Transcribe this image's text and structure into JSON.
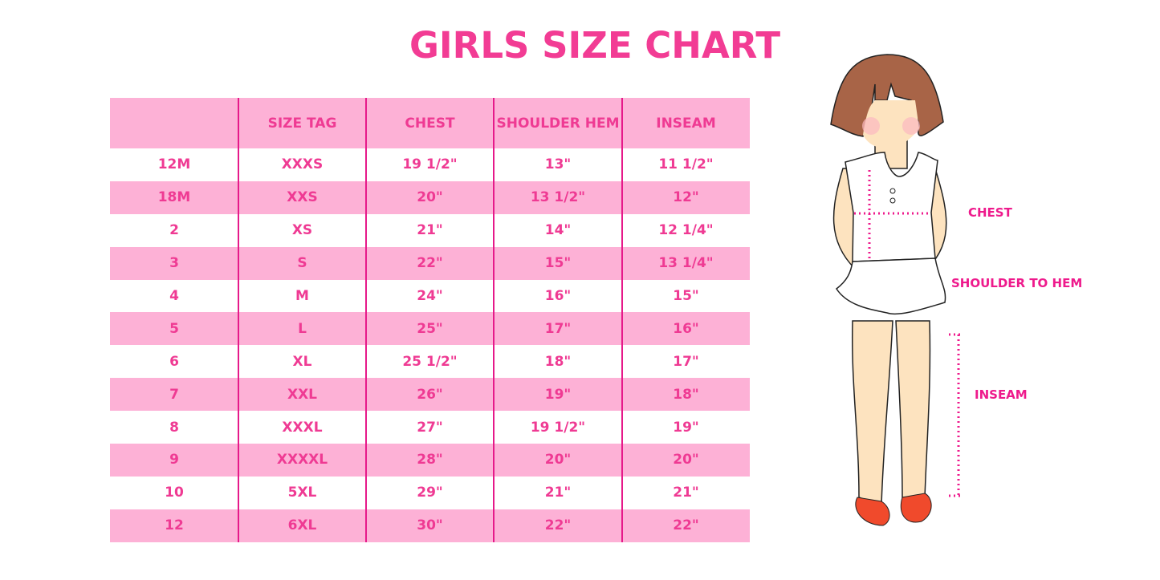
{
  "title": "GIRLS SIZE CHART",
  "table": {
    "headers": [
      "",
      "SIZE TAG",
      "CHEST",
      "SHOULDER HEM",
      "INSEAM"
    ],
    "rows": [
      [
        "12M",
        "XXXS",
        "19 1/2\"",
        "13\"",
        "11 1/2\""
      ],
      [
        "18M",
        "XXS",
        "20\"",
        "13 1/2\"",
        "12\""
      ],
      [
        "2",
        "XS",
        "21\"",
        "14\"",
        "12 1/4\""
      ],
      [
        "3",
        "S",
        "22\"",
        "15\"",
        "13 1/4\""
      ],
      [
        "4",
        "M",
        "24\"",
        "16\"",
        "15\""
      ],
      [
        "5",
        "L",
        "25\"",
        "17\"",
        "16\""
      ],
      [
        "6",
        "XL",
        "25 1/2\"",
        "18\"",
        "17\""
      ],
      [
        "7",
        "XXL",
        "26\"",
        "19\"",
        "18\""
      ],
      [
        "8",
        "XXXL",
        "27\"",
        "19 1/2\"",
        "19\""
      ],
      [
        "9",
        "XXXXL",
        "28\"",
        "20\"",
        "20\""
      ],
      [
        "10",
        "5XL",
        "29\"",
        "21\"",
        "21\""
      ],
      [
        "12",
        "6XL",
        "30\"",
        "22\"",
        "22\""
      ]
    ]
  },
  "figure": {
    "labels": {
      "chest": "CHEST",
      "shoulder": "SHOULDER TO HEM",
      "inseam": "INSEAM"
    }
  },
  "colors": {
    "accent": "#ef3a93",
    "row_pink": "#fdb1d6",
    "divider": "#e6198a"
  }
}
